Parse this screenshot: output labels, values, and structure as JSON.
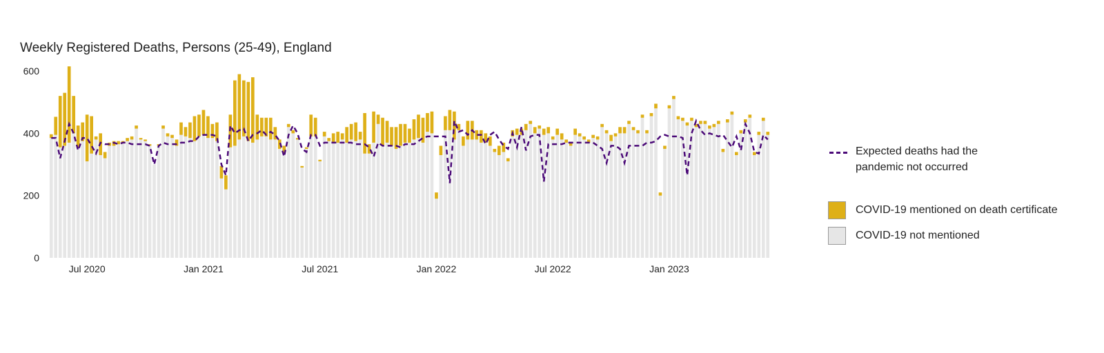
{
  "chart_data": {
    "type": "bar",
    "title": "Weekly Registered Deaths, Persons (25-49), England",
    "xlabel": "",
    "ylabel": "",
    "ylim": [
      0,
      620
    ],
    "y_ticks": [
      0,
      200,
      400,
      600
    ],
    "y_tick_labels": [
      "0",
      "200",
      "400",
      "600"
    ],
    "x_ticks": [
      {
        "week": 8,
        "label": "Jul 2020"
      },
      {
        "week": 34,
        "label": "Jan 2021"
      },
      {
        "week": 60,
        "label": "Jul 2021"
      },
      {
        "week": 86,
        "label": "Jan 2022"
      },
      {
        "week": 112,
        "label": "Jul 2022"
      },
      {
        "week": 138,
        "label": "Jan 2023"
      }
    ],
    "legend_position": "right",
    "grid": false,
    "stacked": true,
    "series": [
      {
        "name": "COVID-19 not mentioned",
        "kind": "bar",
        "color": "#e6e6e6",
        "values": [
          385,
          395,
          355,
          360,
          370,
          400,
          355,
          375,
          310,
          335,
          380,
          330,
          320,
          360,
          360,
          365,
          370,
          375,
          380,
          415,
          380,
          375,
          360,
          300,
          360,
          415,
          390,
          385,
          360,
          395,
          390,
          385,
          375,
          390,
          395,
          385,
          385,
          375,
          255,
          220,
          355,
          360,
          380,
          390,
          375,
          370,
          380,
          390,
          390,
          380,
          380,
          350,
          335,
          420,
          400,
          380,
          290,
          350,
          390,
          390,
          310,
          390,
          375,
          370,
          370,
          380,
          370,
          380,
          375,
          380,
          335,
          335,
          370,
          430,
          360,
          370,
          360,
          350,
          360,
          370,
          370,
          380,
          385,
          370,
          405,
          400,
          190,
          330,
          410,
          410,
          380,
          410,
          360,
          380,
          380,
          380,
          370,
          370,
          360,
          340,
          330,
          340,
          310,
          390,
          395,
          395,
          410,
          430,
          400,
          415,
          395,
          400,
          380,
          395,
          380,
          370,
          360,
          395,
          390,
          380,
          370,
          385,
          380,
          420,
          400,
          375,
          390,
          400,
          400,
          430,
          410,
          400,
          450,
          400,
          455,
          480,
          200,
          350,
          480,
          510,
          445,
          440,
          425,
          440,
          420,
          430,
          430,
          415,
          420,
          430,
          340,
          435,
          460,
          330,
          400,
          435,
          450,
          330,
          395,
          440,
          395
        ]
      },
      {
        "name": "COVID-19 mentioned on death certificate",
        "kind": "bar",
        "color": "#deb018",
        "values": [
          12,
          58,
          165,
          170,
          245,
          120,
          70,
          60,
          150,
          120,
          10,
          70,
          20,
          10,
          15,
          10,
          5,
          10,
          10,
          10,
          5,
          5,
          5,
          0,
          5,
          10,
          10,
          10,
          20,
          40,
          30,
          50,
          80,
          70,
          80,
          70,
          45,
          60,
          40,
          45,
          105,
          210,
          210,
          180,
          190,
          210,
          80,
          60,
          60,
          70,
          40,
          30,
          25,
          10,
          10,
          5,
          5,
          5,
          70,
          60,
          5,
          15,
          10,
          30,
          35,
          20,
          50,
          50,
          60,
          25,
          130,
          30,
          100,
          30,
          90,
          70,
          60,
          70,
          70,
          60,
          45,
          65,
          75,
          80,
          60,
          70,
          20,
          30,
          45,
          65,
          90,
          20,
          30,
          60,
          60,
          30,
          40,
          30,
          30,
          10,
          30,
          30,
          10,
          20,
          20,
          20,
          20,
          10,
          20,
          10,
          20,
          20,
          10,
          20,
          20,
          10,
          10,
          20,
          10,
          10,
          10,
          10,
          10,
          10,
          10,
          20,
          10,
          20,
          20,
          10,
          10,
          10,
          10,
          10,
          10,
          15,
          10,
          10,
          10,
          10,
          10,
          10,
          10,
          10,
          10,
          10,
          10,
          10,
          10,
          10,
          10,
          10,
          10,
          10,
          10,
          10,
          10,
          10,
          10,
          10,
          10
        ]
      },
      {
        "name": "Expected deaths had the pandemic not occurred",
        "kind": "line",
        "color": "#4b0a78",
        "values": [
          385,
          385,
          320,
          375,
          430,
          400,
          345,
          385,
          385,
          360,
          335,
          370,
          365,
          365,
          370,
          365,
          370,
          370,
          365,
          365,
          365,
          365,
          360,
          300,
          360,
          370,
          365,
          365,
          365,
          370,
          370,
          375,
          375,
          390,
          395,
          395,
          395,
          390,
          300,
          265,
          425,
          400,
          410,
          415,
          375,
          395,
          400,
          410,
          395,
          405,
          395,
          375,
          325,
          395,
          425,
          400,
          350,
          340,
          395,
          395,
          360,
          370,
          370,
          370,
          370,
          370,
          370,
          370,
          365,
          365,
          365,
          355,
          325,
          370,
          360,
          360,
          360,
          360,
          355,
          365,
          365,
          365,
          375,
          385,
          390,
          390,
          390,
          390,
          390,
          240,
          440,
          405,
          410,
          395,
          410,
          395,
          395,
          365,
          395,
          405,
          380,
          360,
          350,
          400,
          355,
          420,
          345,
          390,
          395,
          395,
          245,
          365,
          365,
          365,
          365,
          370,
          370,
          370,
          370,
          370,
          370,
          370,
          360,
          350,
          305,
          360,
          360,
          350,
          305,
          360,
          360,
          360,
          360,
          370,
          370,
          375,
          390,
          395,
          390,
          390,
          390,
          385,
          265,
          400,
          440,
          410,
          395,
          400,
          395,
          390,
          395,
          375,
          355,
          390,
          345,
          430,
          400,
          340,
          335,
          395,
          380
        ]
      }
    ]
  }
}
